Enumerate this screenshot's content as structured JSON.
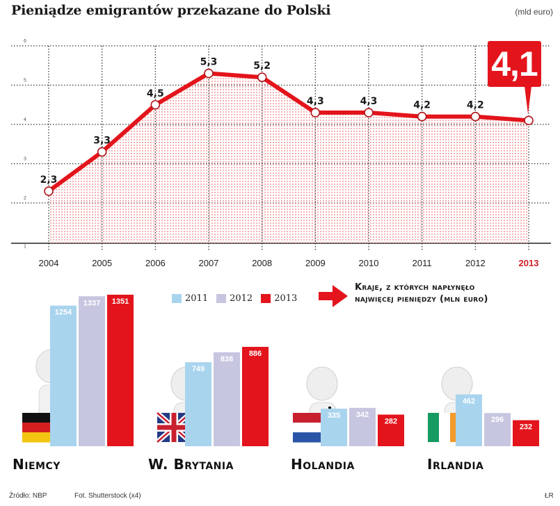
{
  "header": {
    "title": "Pieniądze emigrantów przekazane do Polski",
    "unit": "(mld euro)"
  },
  "callout": {
    "value": "4,1",
    "year": "2013"
  },
  "colors": {
    "line": "#e3141b",
    "fill_dots": "#f2a8a8",
    "grid": "#333333",
    "bar_2011": "#a9d4ee",
    "bar_2012": "#c7c6e0",
    "bar_2013": "#e3141b",
    "highlight_year": "#d0202a"
  },
  "chart_data": [
    {
      "type": "line",
      "title": "Pieniądze emigrantów przekazane do Polski",
      "ylabel": "mld euro",
      "xlabel": "",
      "x": [
        "2004",
        "2005",
        "2006",
        "2007",
        "2008",
        "2009",
        "2010",
        "2011",
        "2012",
        "2013"
      ],
      "values": [
        2.3,
        3.3,
        4.5,
        5.3,
        5.2,
        4.3,
        4.3,
        4.2,
        4.2,
        4.1
      ],
      "data_labels": [
        "2,3",
        "3,3",
        "4,5",
        "5,3",
        "5,2",
        "4,3",
        "4,3",
        "4,2",
        "4,2",
        "4,1"
      ],
      "yticks": [
        "1",
        "2",
        "3",
        "4",
        "5",
        "6"
      ],
      "ylim": [
        0.85,
        6
      ],
      "grid": true,
      "highlight": "2013"
    },
    {
      "type": "bar",
      "title": "Kraje, z których napłynęło najwięcej pieniędzy (mln euro)",
      "categories": [
        "Niemcy",
        "W. Brytania",
        "Holandia",
        "Irlandia"
      ],
      "series": [
        {
          "name": "2011",
          "values": [
            1254,
            749,
            335,
            462
          ]
        },
        {
          "name": "2012",
          "values": [
            1337,
            838,
            342,
            296
          ]
        },
        {
          "name": "2013",
          "values": [
            1351,
            886,
            282,
            232
          ]
        }
      ],
      "legend": "top-center"
    }
  ],
  "legend": {
    "items": [
      {
        "label": "2011"
      },
      {
        "label": "2012"
      },
      {
        "label": "2013"
      }
    ]
  },
  "bar_section": {
    "heading_line1": "Kraje, z których napłynęło",
    "heading_line2": "najwięcej pieniędzy (mln euro)"
  },
  "countries": [
    {
      "name": "Niemcy",
      "flag": "germany-flag-icon"
    },
    {
      "name": "W. Brytania",
      "flag": "uk-flag-icon"
    },
    {
      "name": "Holandia",
      "flag": "netherlands-flag-icon"
    },
    {
      "name": "Irlandia",
      "flag": "ireland-flag-icon"
    }
  ],
  "footer": {
    "source": "Źródło: NBP",
    "photo": "Fot. Shutterstock (x4)",
    "author": "ŁR"
  }
}
